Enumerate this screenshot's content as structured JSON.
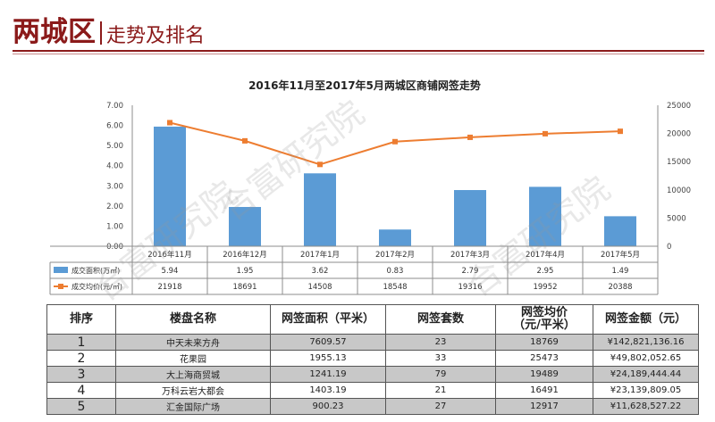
{
  "page_title": {
    "main": "两城区",
    "sub": "走势及排名"
  },
  "watermarks": [
    "合富研究院",
    "合富研究院",
    "合富研究院"
  ],
  "chart_data": {
    "type": "bar",
    "title": "2016年11月至2017年5月两城区商铺网签走势",
    "categories": [
      "2016年11月",
      "2016年12月",
      "2017年1月",
      "2017年2月",
      "2017年3月",
      "2017年4月",
      "2017年5月"
    ],
    "series": [
      {
        "name": "成交面积(万㎡)",
        "type": "bar",
        "axis": "left",
        "color": "#5b9bd5",
        "values": [
          5.94,
          1.95,
          3.62,
          0.83,
          2.79,
          2.95,
          1.49
        ],
        "labels": [
          "5.94",
          "1.95",
          "3.62",
          "0.83",
          "2.79",
          "2.95",
          "1.49"
        ]
      },
      {
        "name": "成交均价(元/㎡)",
        "type": "line",
        "axis": "right",
        "color": "#ed7d31",
        "values": [
          21918,
          18691,
          14508,
          18548,
          19316,
          19952,
          20388
        ],
        "labels": [
          "21918",
          "18691",
          "14508",
          "18548",
          "19316",
          "19952",
          "20388"
        ]
      }
    ],
    "y_left": {
      "min": 0,
      "max": 7,
      "ticks": [
        "0.00",
        "1.00",
        "2.00",
        "3.00",
        "4.00",
        "5.00",
        "6.00",
        "7.00"
      ]
    },
    "y_right": {
      "min": 0,
      "max": 25000,
      "ticks": [
        "0",
        "5000",
        "10000",
        "15000",
        "20000",
        "25000"
      ]
    },
    "legend": "data-table-left",
    "grid": false
  },
  "table": {
    "headers": [
      "排序",
      "楼盘名称",
      "网签面积（平米）",
      "网签套数",
      "网签均价\n（元/平米）",
      "网签金额（元）"
    ],
    "rows": [
      [
        "1",
        "中天未来方舟",
        "7609.57",
        "23",
        "18769",
        "¥142,821,136.16"
      ],
      [
        "2",
        "花果园",
        "1955.13",
        "33",
        "25473",
        "¥49,802,052.65"
      ],
      [
        "3",
        "大上海商贸城",
        "1241.19",
        "79",
        "19489",
        "¥24,189,444.44"
      ],
      [
        "4",
        "万科云岩大都会",
        "1403.19",
        "21",
        "16491",
        "¥23,139,809.05"
      ],
      [
        "5",
        "汇金国际广场",
        "900.23",
        "27",
        "12917",
        "¥11,628,527.22"
      ]
    ]
  }
}
